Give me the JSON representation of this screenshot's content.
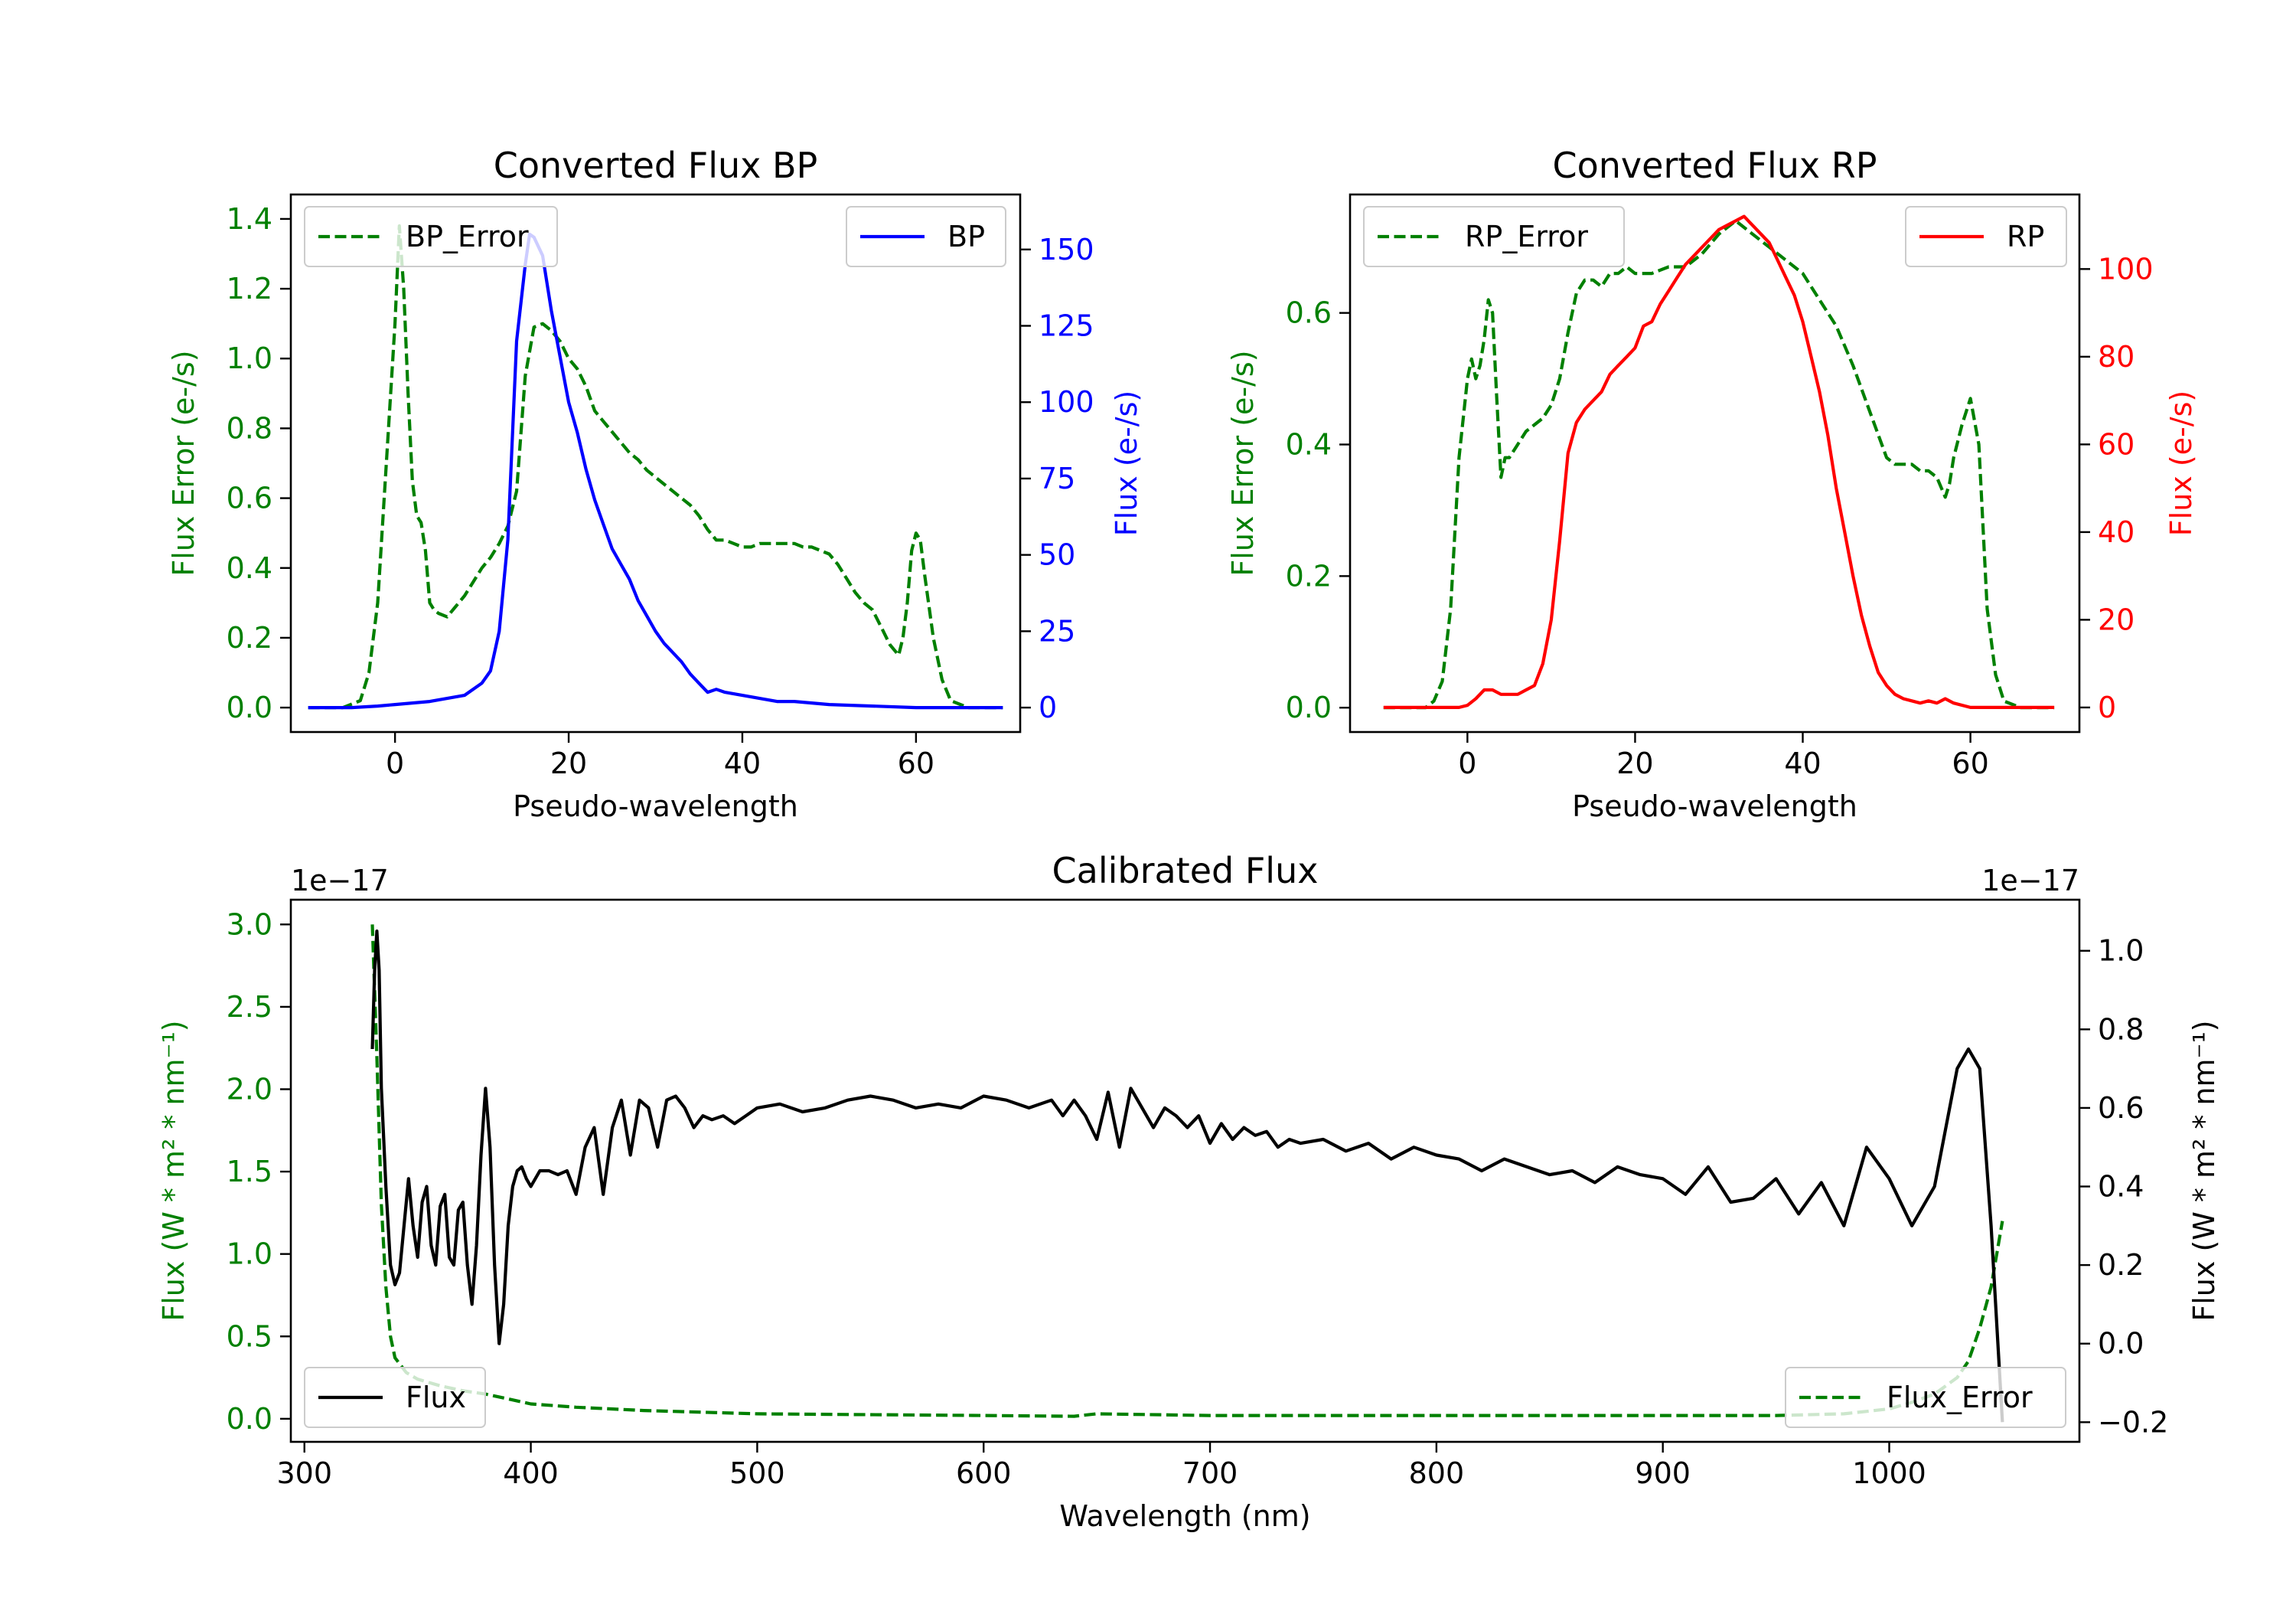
{
  "colors": {
    "green": "#008000",
    "blue": "#0000ff",
    "red": "#ff0000",
    "black": "#000000"
  },
  "chart_data": [
    {
      "type": "line",
      "title": "Converted Flux BP",
      "xlabel": "Pseudo-wavelength",
      "ylabel_left": "Flux Error (e-/s)",
      "ylabel_right": "Flux (e-/s)",
      "xlim": [
        -12,
        72
      ],
      "ylim_left": [
        -0.07,
        1.47
      ],
      "ylim_right": [
        -8,
        168
      ],
      "x_ticks": [
        0,
        20,
        40,
        60
      ],
      "x_tick_labels": [
        "0",
        "20",
        "40",
        "60"
      ],
      "y_left_ticks": [
        0.0,
        0.2,
        0.4,
        0.6,
        0.8,
        1.0,
        1.2,
        1.4
      ],
      "y_left_tick_labels": [
        "0.0",
        "0.2",
        "0.4",
        "0.6",
        "0.8",
        "1.0",
        "1.2",
        "1.4"
      ],
      "y_right_ticks": [
        0,
        25,
        50,
        75,
        100,
        125,
        150
      ],
      "y_right_tick_labels": [
        "0",
        "25",
        "50",
        "75",
        "100",
        "125",
        "150"
      ],
      "legend_left": "BP_Error",
      "legend_right": "BP",
      "series": [
        {
          "name": "BP_Error",
          "axis": "left",
          "color": "green",
          "style": "dashed",
          "x": [
            -10,
            -6,
            -4,
            -3,
            -2,
            -1,
            0,
            0.5,
            1,
            1.5,
            2,
            2.5,
            3,
            3.5,
            4,
            4.5,
            5,
            6,
            7,
            8,
            9,
            10,
            11,
            12,
            13,
            14,
            15,
            16,
            17,
            18,
            19,
            20,
            21,
            22,
            23,
            24,
            25,
            26,
            27,
            28,
            29,
            30,
            31,
            32,
            33,
            34,
            35,
            36,
            37,
            38,
            39,
            40,
            41,
            42,
            43,
            44,
            45,
            46,
            47,
            48,
            49,
            50,
            51,
            52,
            53,
            54,
            55,
            56,
            57,
            58,
            58.5,
            59,
            59.5,
            60,
            60.5,
            61,
            62,
            63,
            64,
            66,
            70
          ],
          "y": [
            0,
            0,
            0.02,
            0.1,
            0.3,
            0.7,
            1.1,
            1.38,
            1.2,
            0.9,
            0.65,
            0.55,
            0.53,
            0.45,
            0.3,
            0.28,
            0.27,
            0.26,
            0.29,
            0.32,
            0.36,
            0.4,
            0.43,
            0.47,
            0.52,
            0.62,
            0.95,
            1.09,
            1.1,
            1.08,
            1.05,
            1.0,
            0.97,
            0.92,
            0.85,
            0.82,
            0.79,
            0.76,
            0.73,
            0.71,
            0.68,
            0.66,
            0.64,
            0.62,
            0.6,
            0.58,
            0.55,
            0.51,
            0.48,
            0.48,
            0.47,
            0.46,
            0.46,
            0.47,
            0.47,
            0.47,
            0.47,
            0.47,
            0.46,
            0.46,
            0.45,
            0.44,
            0.41,
            0.37,
            0.33,
            0.3,
            0.28,
            0.23,
            0.18,
            0.15,
            0.2,
            0.3,
            0.45,
            0.5,
            0.48,
            0.38,
            0.2,
            0.08,
            0.02,
            0,
            0
          ]
        },
        {
          "name": "BP",
          "axis": "right",
          "color": "blue",
          "style": "solid",
          "x": [
            -10,
            -5,
            -2,
            0,
            2,
            4,
            6,
            8,
            10,
            11,
            12,
            13,
            14,
            15,
            15.5,
            16,
            17,
            18,
            19,
            20,
            21,
            22,
            23,
            24,
            25,
            26,
            27,
            28,
            29,
            30,
            31,
            32,
            33,
            34,
            35,
            36,
            37,
            38,
            40,
            42,
            44,
            46,
            50,
            55,
            60,
            65,
            70
          ],
          "y": [
            0,
            0,
            0.5,
            1,
            1.5,
            2,
            3,
            4,
            8,
            12,
            25,
            55,
            120,
            145,
            155,
            154,
            148,
            130,
            115,
            100,
            90,
            78,
            68,
            60,
            52,
            47,
            42,
            35,
            30,
            25,
            21,
            18,
            15,
            11,
            8,
            5,
            6,
            5,
            4,
            3,
            2,
            2,
            1,
            0.5,
            0,
            0,
            0
          ]
        }
      ]
    },
    {
      "type": "line",
      "title": "Converted Flux RP",
      "xlabel": "Pseudo-wavelength",
      "ylabel_left": "Flux Error (e-/s)",
      "ylabel_right": "Flux (e-/s)",
      "xlim": [
        -14,
        73
      ],
      "ylim_left": [
        -0.037,
        0.78
      ],
      "ylim_right": [
        -5.6,
        117
      ],
      "x_ticks": [
        0,
        20,
        40,
        60
      ],
      "x_tick_labels": [
        "0",
        "20",
        "40",
        "60"
      ],
      "y_left_ticks": [
        0.0,
        0.2,
        0.4,
        0.6
      ],
      "y_left_tick_labels": [
        "0.0",
        "0.2",
        "0.4",
        "0.6"
      ],
      "y_right_ticks": [
        0,
        20,
        40,
        60,
        80,
        100
      ],
      "y_right_tick_labels": [
        "0",
        "20",
        "40",
        "60",
        "80",
        "100"
      ],
      "legend_left": "RP_Error",
      "legend_right": "RP",
      "series": [
        {
          "name": "RP_Error",
          "axis": "left",
          "color": "green",
          "style": "dashed",
          "x": [
            -10,
            -5,
            -4,
            -3,
            -2,
            -1,
            0,
            0.5,
            1,
            1.5,
            2,
            2.5,
            3,
            3.5,
            4,
            4.5,
            5,
            6,
            7,
            8,
            9,
            10,
            11,
            12,
            13,
            14,
            15,
            16,
            17,
            18,
            19,
            20,
            22,
            24,
            26,
            28,
            30,
            32,
            34,
            36,
            38,
            40,
            42,
            44,
            46,
            48,
            50,
            51,
            52,
            53,
            54,
            55,
            56,
            57,
            57.5,
            58,
            59,
            60,
            61,
            62,
            63,
            64,
            66,
            70
          ],
          "y": [
            0,
            0,
            0.01,
            0.04,
            0.15,
            0.38,
            0.5,
            0.53,
            0.5,
            0.52,
            0.56,
            0.62,
            0.6,
            0.47,
            0.35,
            0.38,
            0.38,
            0.4,
            0.42,
            0.43,
            0.44,
            0.46,
            0.5,
            0.57,
            0.63,
            0.65,
            0.65,
            0.64,
            0.66,
            0.66,
            0.67,
            0.66,
            0.66,
            0.67,
            0.67,
            0.69,
            0.72,
            0.74,
            0.72,
            0.7,
            0.68,
            0.66,
            0.62,
            0.58,
            0.52,
            0.45,
            0.38,
            0.37,
            0.37,
            0.37,
            0.36,
            0.36,
            0.35,
            0.32,
            0.34,
            0.38,
            0.43,
            0.47,
            0.4,
            0.15,
            0.05,
            0.01,
            0,
            0
          ]
        },
        {
          "name": "RP",
          "axis": "right",
          "color": "red",
          "style": "solid",
          "x": [
            -10,
            -5,
            -1,
            0,
            1,
            2,
            3,
            4,
            5,
            6,
            7,
            8,
            9,
            10,
            11,
            12,
            13,
            14,
            15,
            16,
            17,
            18,
            19,
            20,
            21,
            22,
            23,
            24,
            25,
            26,
            27,
            28,
            29,
            30,
            31,
            32,
            33,
            34,
            35,
            36,
            37,
            38,
            39,
            40,
            41,
            42,
            43,
            44,
            45,
            46,
            47,
            48,
            49,
            50,
            51,
            52,
            53,
            54,
            55,
            56,
            57,
            58,
            60,
            65,
            70
          ],
          "y": [
            0,
            0,
            0,
            0.5,
            2,
            4,
            4,
            3,
            3,
            3,
            4,
            5,
            10,
            20,
            38,
            58,
            65,
            68,
            70,
            72,
            76,
            78,
            80,
            82,
            87,
            88,
            92,
            95,
            98,
            101,
            103,
            105,
            107,
            109,
            110,
            111,
            112,
            110,
            108,
            106,
            102,
            98,
            94,
            88,
            80,
            72,
            62,
            50,
            40,
            30,
            21,
            14,
            8,
            5,
            3,
            2,
            1.5,
            1,
            1.5,
            1,
            2,
            1,
            0,
            0,
            0
          ]
        }
      ]
    },
    {
      "type": "line",
      "title": "Calibrated Flux",
      "xlabel": "Wavelength (nm)",
      "ylabel_left": "Flux (W * m² * nm⁻¹)",
      "ylabel_right": "Flux (W * m² * nm⁻¹)",
      "offset_left": "1e−17",
      "offset_right": "1e−17",
      "xlim": [
        294,
        1084
      ],
      "ylim_left": [
        -0.14,
        3.15
      ],
      "ylim_right": [
        -0.25,
        1.13
      ],
      "x_ticks": [
        300,
        400,
        500,
        600,
        700,
        800,
        900,
        1000
      ],
      "x_tick_labels": [
        "300",
        "400",
        "500",
        "600",
        "700",
        "800",
        "900",
        "1000"
      ],
      "y_left_ticks": [
        0.0,
        0.5,
        1.0,
        1.5,
        2.0,
        2.5,
        3.0
      ],
      "y_left_tick_labels": [
        "0.0",
        "0.5",
        "1.0",
        "1.5",
        "2.0",
        "2.5",
        "3.0"
      ],
      "y_right_ticks": [
        -0.2,
        0.0,
        0.2,
        0.4,
        0.6,
        0.8,
        1.0
      ],
      "y_right_tick_labels": [
        "−0.2",
        "0.0",
        "0.2",
        "0.4",
        "0.6",
        "0.8",
        "1.0"
      ],
      "legend_left": "Flux",
      "legend_right": "Flux_Error",
      "series": [
        {
          "name": "Flux_Error",
          "axis": "left",
          "color": "green",
          "style": "dashed",
          "x": [
            330,
            332,
            334,
            336,
            338,
            340,
            345,
            350,
            360,
            370,
            380,
            390,
            400,
            420,
            450,
            500,
            600,
            640,
            650,
            700,
            800,
            900,
            950,
            980,
            1000,
            1010,
            1020,
            1030,
            1035,
            1040,
            1045,
            1050
          ],
          "y": [
            3.0,
            2.2,
            1.3,
            0.8,
            0.5,
            0.37,
            0.28,
            0.24,
            0.2,
            0.17,
            0.15,
            0.12,
            0.09,
            0.07,
            0.05,
            0.03,
            0.02,
            0.015,
            0.03,
            0.02,
            0.02,
            0.02,
            0.02,
            0.03,
            0.06,
            0.1,
            0.15,
            0.25,
            0.35,
            0.55,
            0.8,
            1.2
          ]
        },
        {
          "name": "Flux",
          "axis": "right",
          "color": "black",
          "style": "solid",
          "x": [
            330,
            331,
            332,
            333,
            334,
            336,
            338,
            340,
            342,
            344,
            346,
            348,
            350,
            352,
            354,
            356,
            358,
            360,
            362,
            364,
            366,
            368,
            370,
            372,
            374,
            376,
            378,
            380,
            382,
            384,
            386,
            388,
            390,
            392,
            394,
            396,
            398,
            400,
            404,
            408,
            412,
            416,
            420,
            424,
            428,
            432,
            436,
            440,
            444,
            448,
            452,
            456,
            460,
            464,
            468,
            472,
            476,
            480,
            485,
            490,
            495,
            500,
            510,
            520,
            530,
            540,
            550,
            560,
            570,
            580,
            590,
            600,
            610,
            620,
            630,
            635,
            640,
            645,
            650,
            655,
            660,
            665,
            670,
            675,
            680,
            685,
            690,
            695,
            700,
            705,
            710,
            715,
            720,
            725,
            730,
            735,
            740,
            750,
            760,
            770,
            780,
            790,
            800,
            810,
            820,
            830,
            840,
            850,
            860,
            870,
            880,
            890,
            900,
            910,
            920,
            930,
            940,
            950,
            960,
            970,
            980,
            990,
            1000,
            1010,
            1020,
            1025,
            1030,
            1035,
            1040,
            1045,
            1050
          ],
          "y": [
            0.75,
            0.95,
            1.05,
            0.95,
            0.65,
            0.4,
            0.2,
            0.15,
            0.18,
            0.3,
            0.42,
            0.3,
            0.22,
            0.36,
            0.4,
            0.25,
            0.2,
            0.35,
            0.38,
            0.22,
            0.2,
            0.34,
            0.36,
            0.2,
            0.1,
            0.25,
            0.48,
            0.65,
            0.5,
            0.2,
            0.0,
            0.1,
            0.3,
            0.4,
            0.44,
            0.45,
            0.42,
            0.4,
            0.44,
            0.44,
            0.43,
            0.44,
            0.38,
            0.5,
            0.55,
            0.38,
            0.55,
            0.62,
            0.48,
            0.62,
            0.6,
            0.5,
            0.62,
            0.63,
            0.6,
            0.55,
            0.58,
            0.57,
            0.58,
            0.56,
            0.58,
            0.6,
            0.61,
            0.59,
            0.6,
            0.62,
            0.63,
            0.62,
            0.6,
            0.61,
            0.6,
            0.63,
            0.62,
            0.6,
            0.62,
            0.58,
            0.62,
            0.58,
            0.52,
            0.64,
            0.5,
            0.65,
            0.6,
            0.55,
            0.6,
            0.58,
            0.55,
            0.58,
            0.51,
            0.56,
            0.52,
            0.55,
            0.53,
            0.54,
            0.5,
            0.52,
            0.51,
            0.52,
            0.49,
            0.51,
            0.47,
            0.5,
            0.48,
            0.47,
            0.44,
            0.47,
            0.45,
            0.43,
            0.44,
            0.41,
            0.45,
            0.43,
            0.42,
            0.38,
            0.45,
            0.36,
            0.37,
            0.42,
            0.33,
            0.41,
            0.3,
            0.5,
            0.42,
            0.3,
            0.4,
            0.55,
            0.7,
            0.75,
            0.7,
            0.3,
            -0.2
          ]
        }
      ]
    }
  ]
}
